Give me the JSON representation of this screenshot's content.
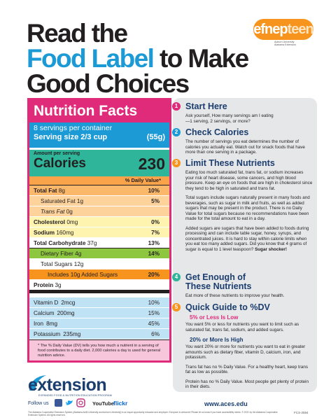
{
  "header": {
    "title_line1": "Read the",
    "title_highlight": "Food Label",
    "title_line2_rest": "to Make",
    "title_line3": "Good Choices",
    "logo": {
      "part1": "efnep",
      "part2": "teen",
      "line1": "Auburn University",
      "line2": "Alabama Extension"
    }
  },
  "nutrition_label": {
    "title": "Nutrition Facts",
    "servings": "8 servings per container",
    "serving_size_label": "Serving size 2/3 cup",
    "serving_size_value": "(55g)",
    "amount_per_serving": "Amount per serving",
    "calories_label": "Calories",
    "calories_value": 230,
    "daily_value_header": "% Daily Value*",
    "rows": [
      {
        "name": "Total Fat",
        "amount": "8g",
        "dv": "10%"
      },
      {
        "name": "Saturated Fat",
        "amount": "1g",
        "dv": "5%"
      },
      {
        "name": "Trans Fat",
        "amount": "0g"
      },
      {
        "name": "Cholesterol",
        "amount": "0mg",
        "dv": "0%"
      },
      {
        "name": "Sodium",
        "amount": "160mg",
        "dv": "7%"
      },
      {
        "name": "Total Carbohydrate",
        "amount": "37g",
        "dv": "13%"
      },
      {
        "name": "Dietary Fiber",
        "amount": "4g",
        "dv": "14%"
      },
      {
        "name": "Total Sugars",
        "amount": "12g"
      },
      {
        "name": "Includes 10g Added Sugars",
        "dv": "20%"
      },
      {
        "name": "Protein",
        "amount": "3g"
      }
    ],
    "vitamins": [
      {
        "name": "Vitamin D",
        "amount": "2mcg",
        "dv": "10%"
      },
      {
        "name": "Calcium",
        "amount": "200mg",
        "dv": "15%"
      },
      {
        "name": "Iron",
        "amount": "8mg",
        "dv": "45%"
      },
      {
        "name": "Potassium",
        "amount": "235mg",
        "dv": "6%"
      }
    ],
    "footnote": "* The % Daily Value (DV) tells you how much a nutrient in a serving of food contributes to a daily diet. 2,000 calories a day is used for general nutrition advice."
  },
  "sections": [
    {
      "number": "1",
      "heading": "Start Here",
      "paragraphs": [
        "Ask yourself, How many servings am I eating—1 serving, 2 servings, or more?"
      ]
    },
    {
      "number": "2",
      "heading": "Check Calories",
      "paragraphs": [
        "The number of servings you eat determines the number of calories you actually eat. Watch out for snack foods that have more than one serving in a package."
      ]
    },
    {
      "number": "3",
      "heading": "Limit These Nutrients",
      "paragraphs": [
        "Eating too much saturated fat, trans fat, or sodium increases your risk of heart disease, some cancers, and high blood pressure. Keep an eye on foods that are high in cholesterol since they tend to be high in saturated and trans fat.",
        "Total sugars include sugars naturally present in many foods and beverages, such as sugar in milk and fruits, as well as added sugars that may be present in the product. There is no Daily Value for total sugars because no recommendations have been made for the total amount to eat in a day.",
        "Added sugars are sugars that have been added to foods during processing and can include table sugar, honey, syrups, and concentrated juices. It is hard to stay within calorie limits when you eat too many added sugars. Did you know that 4 grams of sugar is equal to 1 level teaspoon?"
      ],
      "emphasis": "Sugar shocker!"
    },
    {
      "number": "4",
      "heading": "Get Enough of These Nutrients",
      "paragraphs": [
        "Eat more of these nutrients to improve your health."
      ]
    },
    {
      "number": "5",
      "heading": "Quick Guide to %DV",
      "subsections": [
        {
          "heading": "5% or Less Is Low",
          "text": "You want 5% or less for nutrients you want to limit such as saturated fat, trans fat, sodium, and added sugars."
        },
        {
          "heading": "20% or More Is High",
          "text": "You want 20% or more for nutrients you want to eat in greater amounts such as dietary fiber, vitamin D, calcium, iron, and potassium."
        }
      ],
      "paragraphs": [
        "Trans fat has no % Daily Value. For a healthy heart, keep trans fat as low as possible.",
        "Protein has no % Daily Value. Most people get plenty of protein in their diets."
      ]
    }
  ],
  "footer": {
    "brand": "extension",
    "brand_tagline": "EXPANDED FOOD & NUTRITION EDUCATION PROGRAM",
    "follow": "Follow us",
    "youtube": "YouTube",
    "flickr": "flickr",
    "website": "www.aces.edu",
    "fine_print": "The Alabama Cooperative Extension System (Alabama A&M University and Auburn University) is an equal opportunity educator and employer. Everyone is welcome! Please let us know if you have accessibility needs. © 2021 by the Alabama Cooperative Extension System. All rights reserved.",
    "code": "FCS-2594"
  }
}
